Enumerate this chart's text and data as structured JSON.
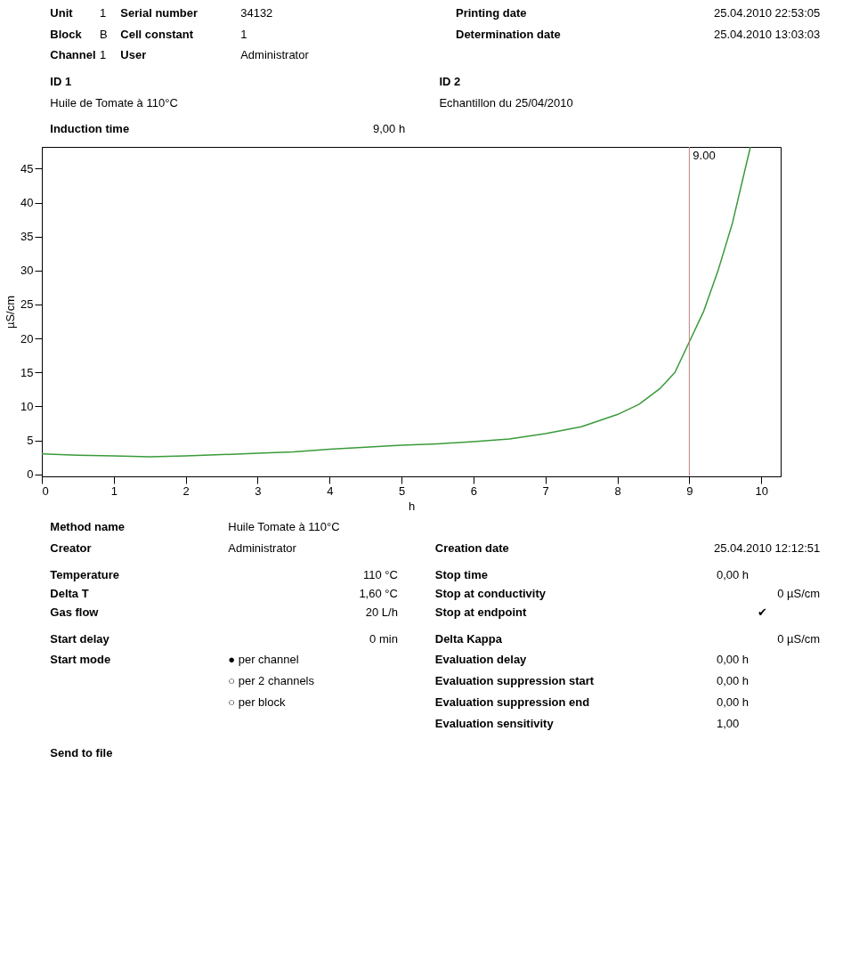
{
  "chart_data": {
    "type": "line",
    "title": "Induction time",
    "subtitle": "9,00 h",
    "xlabel": "h",
    "ylabel": "µS/cm",
    "x": [
      0,
      0.5,
      1,
      1.5,
      2,
      2.5,
      3,
      3.5,
      4,
      4.5,
      5,
      5.5,
      6,
      6.5,
      7,
      7.5,
      8,
      8.3,
      8.6,
      8.8,
      9,
      9.2,
      9.4,
      9.6,
      9.8,
      9.85
    ],
    "series": [
      {
        "color": "#3a9a3a",
        "values": [
          3,
          2.8,
          2.7,
          2.6,
          2.7,
          2.9,
          3.1,
          3.3,
          3.7,
          4.0,
          4.3,
          4.5,
          4.8,
          5.2,
          6.0,
          7.0,
          8.8,
          10.3,
          12.7,
          15,
          19.5,
          24,
          30,
          37,
          46,
          48.2
        ]
      }
    ],
    "xlim": [
      0,
      10.27
    ],
    "xticks": [
      0,
      1,
      2,
      3,
      4,
      5,
      6,
      7,
      8,
      9,
      10
    ],
    "ylim": [
      -0.3,
      48.2
    ],
    "yticks": [
      0,
      5,
      10,
      15,
      20,
      25,
      30,
      35,
      40,
      45
    ],
    "ref_lines": [
      {
        "axis": "x",
        "value": 9,
        "label": "9.00",
        "color": "#c08080"
      }
    ],
    "grid": false,
    "legend": false,
    "marker": "none",
    "line_style": "solid",
    "annotations": [
      "Unit",
      "1",
      "Serial number",
      "34132",
      "Printing date",
      "25.04.2010 22:53:05",
      "Block",
      "B",
      "Cell constant",
      "1",
      "Determination date",
      "25.04.2010 13:03:03",
      "Channel",
      "1",
      "User",
      "Administrator",
      "ID 1",
      "ID 2",
      "Huile de Tomate à 110°C",
      "Echantillon du 25/04/2010",
      "Method name",
      "Huile Tomate à 110°C",
      "Creator",
      "Administrator",
      "Creation date",
      "25.04.2010 12:12:51",
      "Temperature",
      "110 °C",
      "Stop time",
      "0,00 h",
      "Delta T",
      "1,60 °C",
      "Stop at conductivity",
      "0 µS/cm",
      "Gas flow",
      "20 L/h",
      "Stop at endpoint",
      "✔",
      "Start delay",
      "0 min",
      "Delta Kappa",
      "0 µS/cm",
      "Start mode",
      "● per channel",
      "Evaluation delay",
      "0,00 h",
      "○ per 2 channels",
      "Evaluation suppression start",
      "0,00 h",
      "○ per block",
      "Evaluation suppression end",
      "0,00 h",
      "Evaluation sensitivity",
      "1,00",
      "Send to file"
    ]
  }
}
